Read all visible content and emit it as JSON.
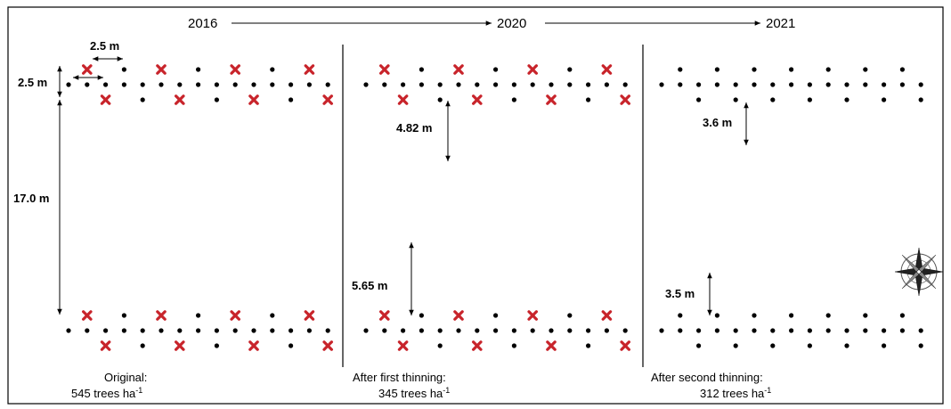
{
  "timeline": {
    "years": [
      "2016",
      "2020",
      "2021"
    ]
  },
  "measurements": {
    "tree_spacing": "2.5 m",
    "row_spacing": "2.5 m",
    "original_gap": "17.0 m",
    "first_top_gap": "4.82 m",
    "first_bottom_gap": "5.65 m",
    "second_top_gap": "3.6 m",
    "second_bottom_gap": "3.5 m"
  },
  "panels": [
    {
      "caption_line1": "Original:",
      "density_value": "545 trees ha",
      "density_exponent": "-1"
    },
    {
      "caption_line1": "After first thinning:",
      "density_value": "345 trees ha",
      "density_exponent": "-1"
    },
    {
      "caption_line1": "After second thinning:",
      "density_value": "312 trees ha",
      "density_exponent": "-1"
    }
  ],
  "legend": {
    "tree_marker": "tree",
    "removed_marker": "removed tree"
  },
  "colors": {
    "removed": "#c8242b",
    "tree": "#000000",
    "border": "#000000"
  },
  "icons": {
    "compass": "compass-rose-icon"
  }
}
